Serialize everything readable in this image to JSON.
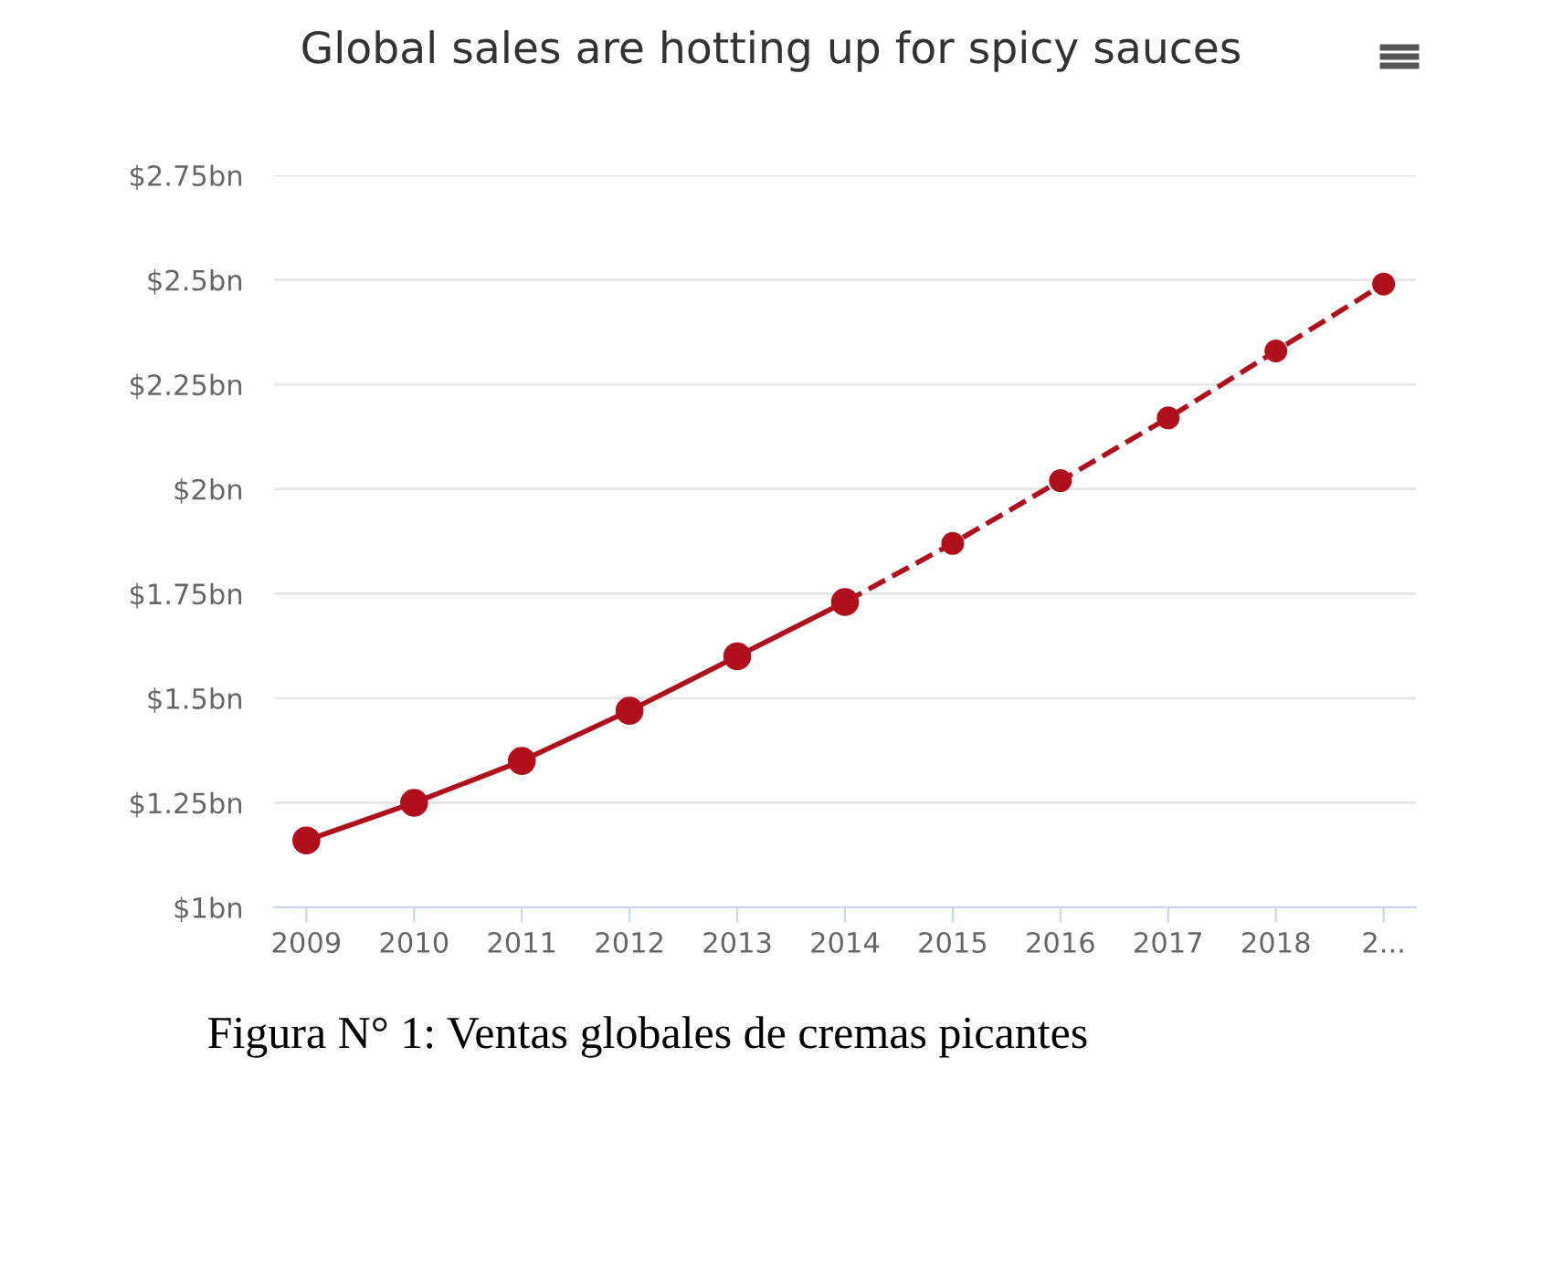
{
  "chart_data": {
    "type": "line",
    "title": "Global sales are hotting up for spicy sauces",
    "categories": [
      "2009",
      "2010",
      "2011",
      "2012",
      "2013",
      "2014",
      "2015",
      "2016",
      "2017",
      "2018",
      "2..."
    ],
    "series": [
      {
        "color": "#b0101c",
        "line_style": "solid",
        "values": [
          1.16,
          1.25,
          1.35,
          1.47,
          1.6,
          1.73,
          null,
          null,
          null,
          null,
          null
        ]
      },
      {
        "color": "#b0101c",
        "line_style": "dashed",
        "values": [
          null,
          null,
          null,
          null,
          null,
          1.73,
          1.87,
          2.02,
          2.17,
          2.33,
          2.49
        ]
      }
    ],
    "ylim": [
      1,
      2.75
    ],
    "yticks": [
      {
        "value": 1,
        "label": "$1bn"
      },
      {
        "value": 1.25,
        "label": "$1.25bn"
      },
      {
        "value": 1.5,
        "label": "$1.5bn"
      },
      {
        "value": 1.75,
        "label": "$1.75bn"
      },
      {
        "value": 2,
        "label": "$2bn"
      },
      {
        "value": 2.25,
        "label": "$2.25bn"
      },
      {
        "value": 2.5,
        "label": "$2.5bn"
      },
      {
        "value": 2.75,
        "label": "$2.75bn"
      }
    ],
    "grid": "y",
    "marker": "circle",
    "legend": false,
    "annotations": [
      "Figura N° 1: Ventas globales de cremas picantes"
    ]
  }
}
